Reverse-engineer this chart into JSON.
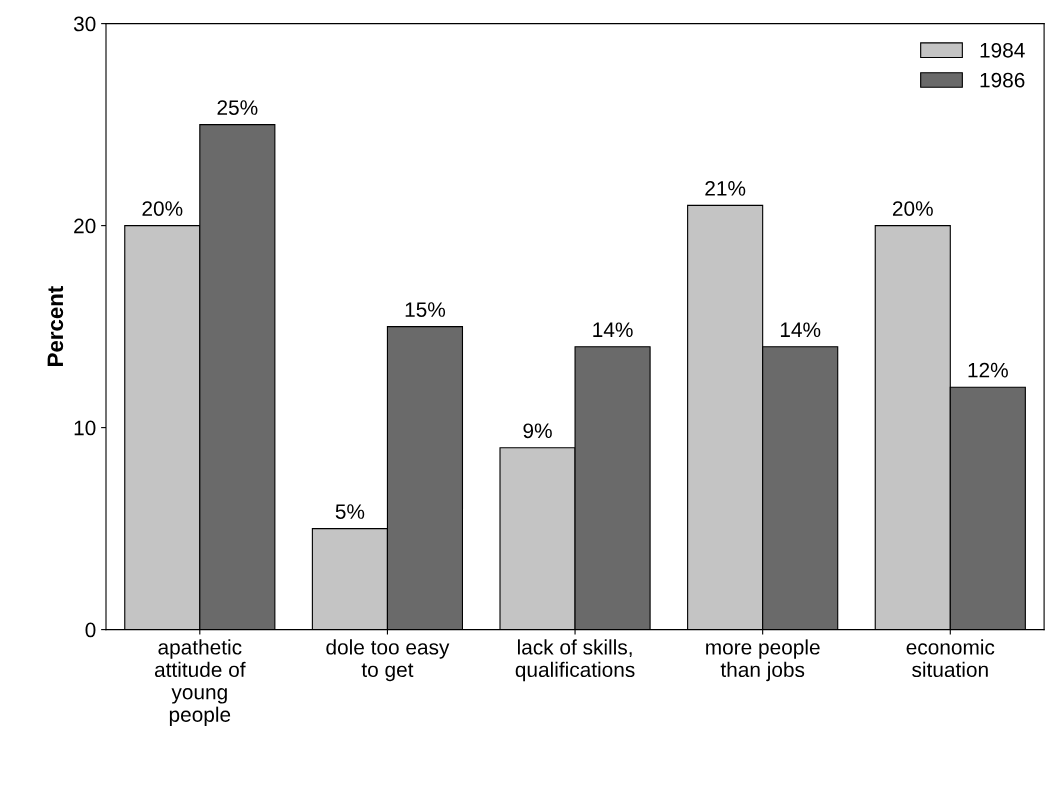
{
  "chart_data": {
    "type": "bar",
    "ylabel": "Percent",
    "categories": [
      "apathetic\nattitude of\nyoung\npeople",
      "dole too easy\nto get",
      "lack of skills,\nqualifications",
      "more people\nthan jobs",
      "economic\nsituation"
    ],
    "series": [
      {
        "name": "1984",
        "color": "#c4c4c4",
        "values": [
          20,
          5,
          9,
          21,
          20
        ],
        "value_labels": [
          "20%",
          "5%",
          "9%",
          "21%",
          "20%"
        ]
      },
      {
        "name": "1986",
        "color": "#6a6a6a",
        "values": [
          25,
          15,
          14,
          14,
          12
        ],
        "value_labels": [
          "25%",
          "15%",
          "14%",
          "14%",
          "12%"
        ]
      }
    ],
    "ylim": [
      0,
      30
    ],
    "yticks": [
      0,
      10,
      20,
      30
    ],
    "grid": false,
    "legend": "top right"
  }
}
